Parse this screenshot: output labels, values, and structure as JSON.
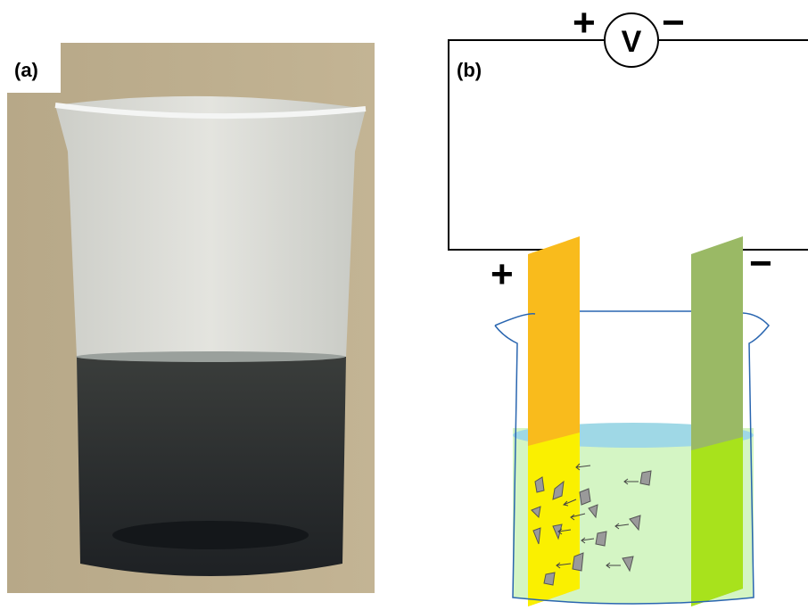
{
  "panels": [
    {
      "label": "(a)"
    },
    {
      "label": "(b)",
      "voltmeter": "V",
      "circuit_signs": [
        "+",
        "−"
      ],
      "electrode_signs": [
        "+",
        "−"
      ]
    }
  ]
}
